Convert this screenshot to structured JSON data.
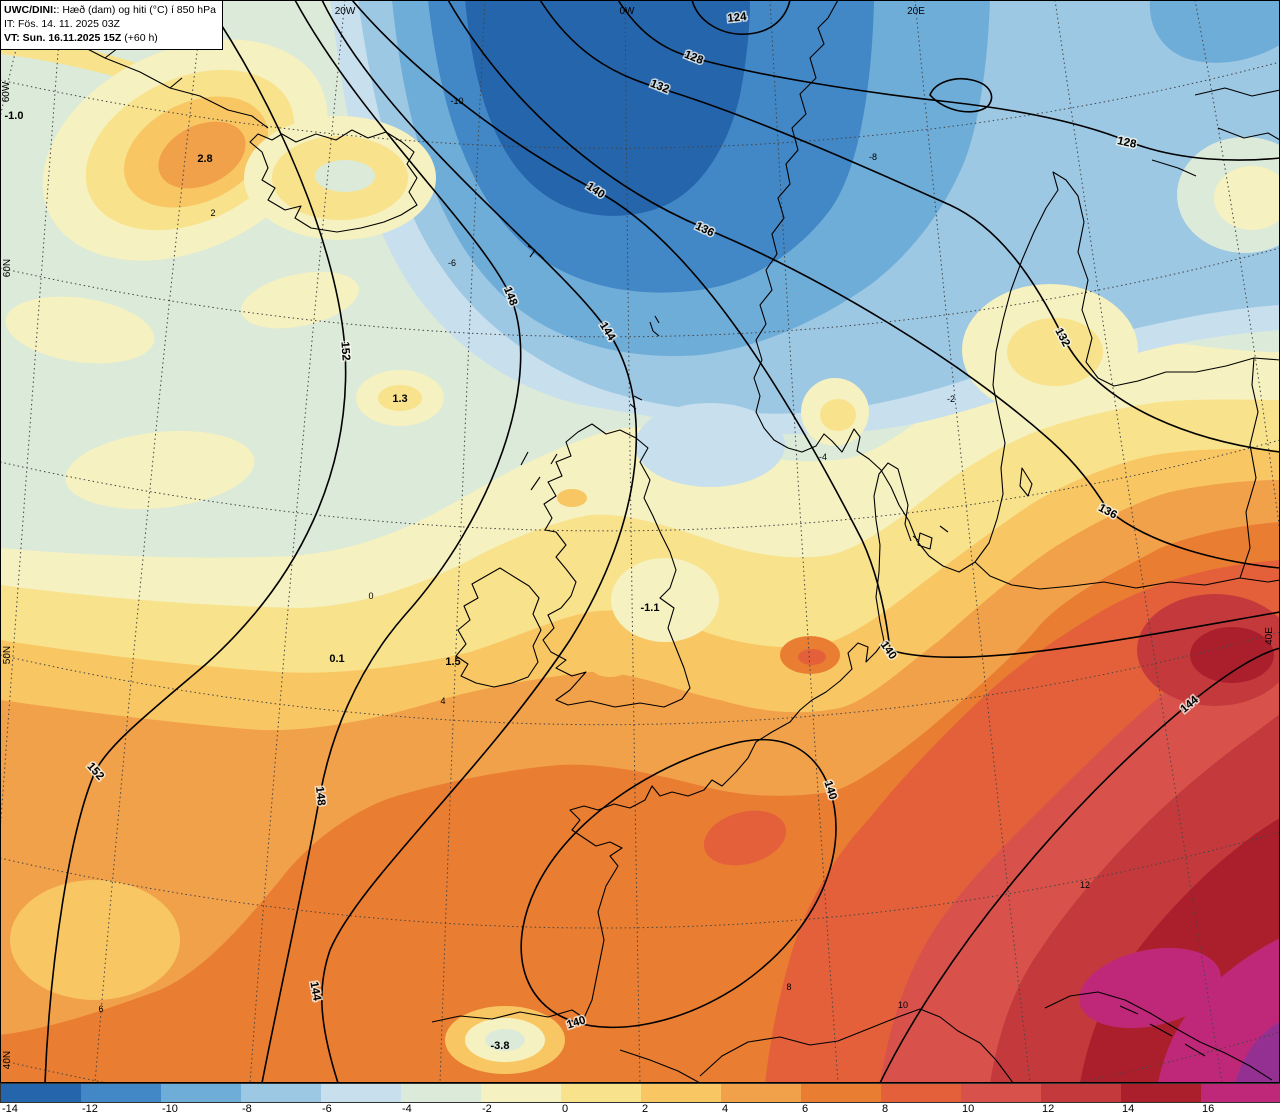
{
  "title_box": {
    "line1_bold": "UWC/DINI:",
    "line1_rest": ": Hæð (dam) og hiti (°C) í 850 hPa",
    "line2": "IT: Fös. 14. 11. 2025 03Z",
    "line3_bold": "VT: Sun. 16.11.2025 15Z",
    "line3_rest": " (+60 h)"
  },
  "palette": [
    "#2565ab",
    "#4287c6",
    "#6fadd9",
    "#9dc8e4",
    "#c8dfed",
    "#dcead9",
    "#f5f1c0",
    "#f8e28c",
    "#f8c763",
    "#f2a14b",
    "#e97d31",
    "#e4603a",
    "#d8524b",
    "#c43a3c",
    "#ab1f2d",
    "#bf2878",
    "#953093"
  ],
  "colorbar": {
    "labels": [
      "-14",
      "-12",
      "-10",
      "-8",
      "-6",
      "-4",
      "-2",
      "0",
      "2",
      "4",
      "6",
      "8",
      "10",
      "12",
      "14",
      "16"
    ]
  },
  "coords": {
    "w20": "20W",
    "w0": "0W",
    "e20": "20E",
    "n60": "60N",
    "n50": "50N",
    "n40": "40N",
    "w60": "60W",
    "e40": "40E"
  },
  "contours": {
    "c124": "124",
    "c128": "128",
    "c132": "132",
    "c136": "136",
    "c140": "140",
    "c144": "144",
    "c148": "148",
    "c152": "152"
  },
  "spot_temps": {
    "g1": "-1.0",
    "g2": "2.8",
    "g3": "1.3",
    "g4": "-1.1",
    "g5": "0.1",
    "g6": "1.5",
    "g7": "-3.8"
  },
  "isotherm_ticks": {
    "m10": "-10",
    "m8": "-8",
    "m6": "-6",
    "m4": "-4",
    "m2": "-2",
    "z0": "0",
    "p2": "2",
    "p4": "4",
    "p6": "6",
    "p8": "8",
    "p10": "10",
    "p12": "12"
  }
}
